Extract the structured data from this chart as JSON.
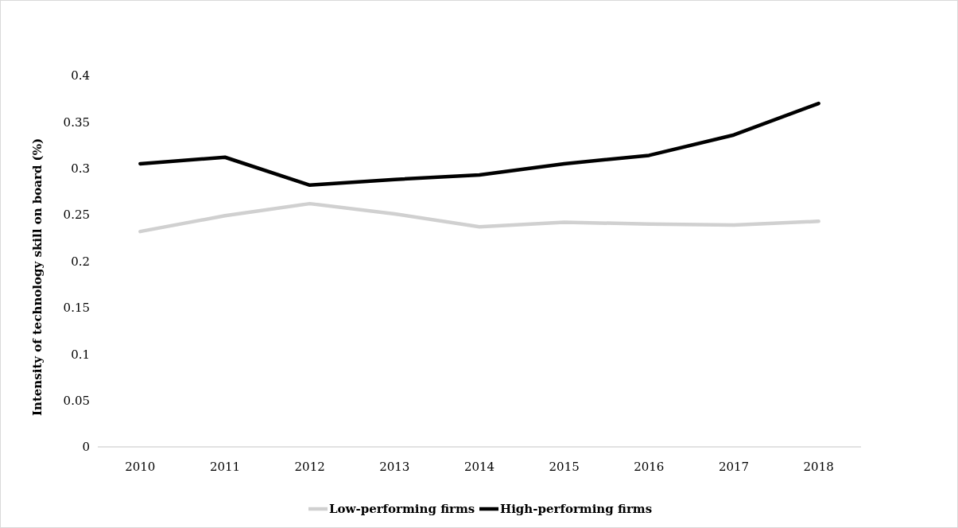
{
  "chart_data": {
    "type": "line",
    "ylabel": "Intensity of technology skill on board (%)",
    "categories": [
      "2010",
      "2011",
      "2012",
      "2013",
      "2014",
      "2015",
      "2016",
      "2017",
      "2018"
    ],
    "series": [
      {
        "name": "Low-performing firms",
        "color": "#d0d0d0",
        "values": [
          0.232,
          0.249,
          0.262,
          0.251,
          0.237,
          0.242,
          0.24,
          0.239,
          0.243
        ]
      },
      {
        "name": "High-performing firms",
        "color": "#000000",
        "values": [
          0.305,
          0.312,
          0.282,
          0.288,
          0.293,
          0.305,
          0.314,
          0.336,
          0.37
        ]
      }
    ],
    "ylim": [
      0,
      0.4
    ],
    "yticks": [
      0,
      0.05,
      0.1,
      0.15,
      0.2,
      0.25,
      0.3,
      0.35,
      0.4
    ],
    "grid": false,
    "legend": "bottom",
    "marker": "none",
    "line_style": "solid"
  }
}
